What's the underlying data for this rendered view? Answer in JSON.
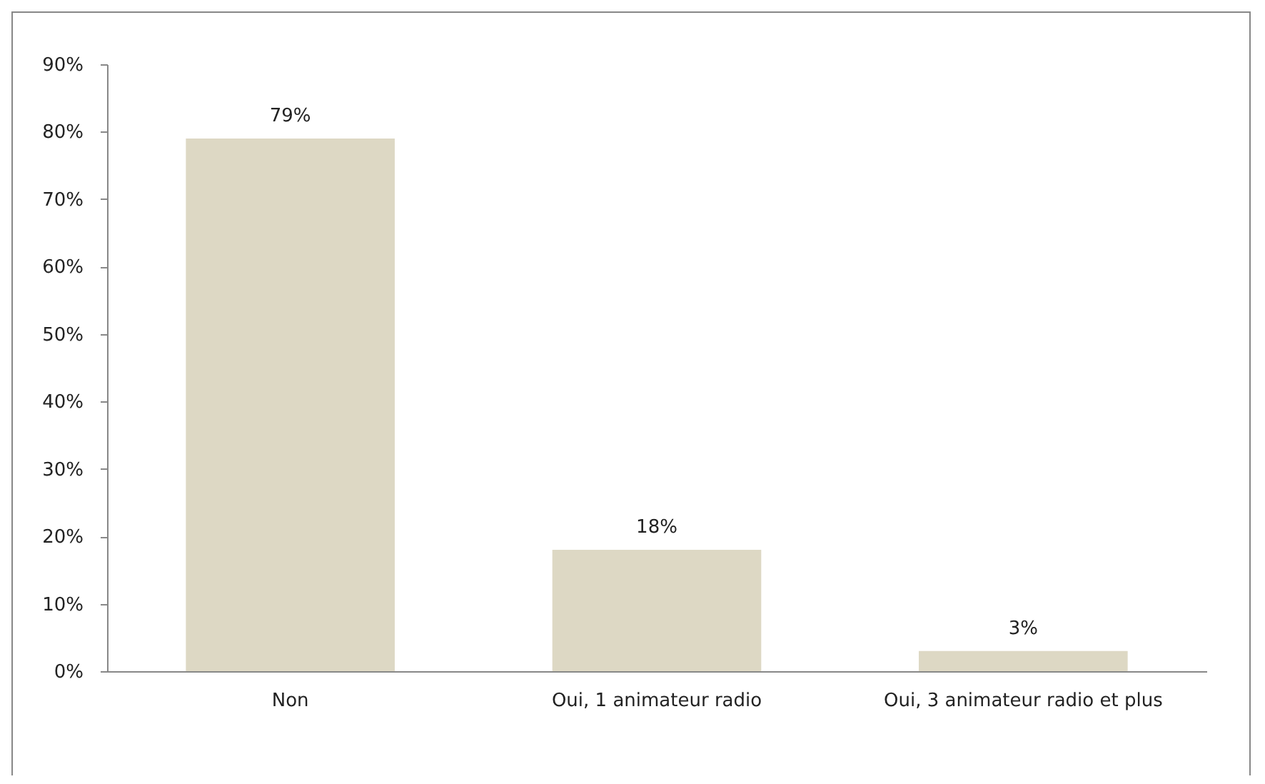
{
  "chart_data": {
    "type": "bar",
    "categories": [
      "Non",
      "Oui, 1 animateur radio",
      "Oui, 3 animateur radio et plus"
    ],
    "values": [
      79,
      18,
      3
    ],
    "color": "#ddd8c4",
    "value_labels": [
      "79%",
      "18%",
      "3%"
    ],
    "ylim": [
      0,
      90
    ],
    "yticks": [
      {
        "value": 0,
        "label": "0%"
      },
      {
        "value": 10,
        "label": "10%"
      },
      {
        "value": 20,
        "label": "20%"
      },
      {
        "value": 30,
        "label": "30%"
      },
      {
        "value": 40,
        "label": "40%"
      },
      {
        "value": 50,
        "label": "50%"
      },
      {
        "value": 60,
        "label": "60%"
      },
      {
        "value": 70,
        "label": "70%"
      },
      {
        "value": 80,
        "label": "80%"
      },
      {
        "value": 90,
        "label": "90%"
      }
    ],
    "grid": false
  }
}
